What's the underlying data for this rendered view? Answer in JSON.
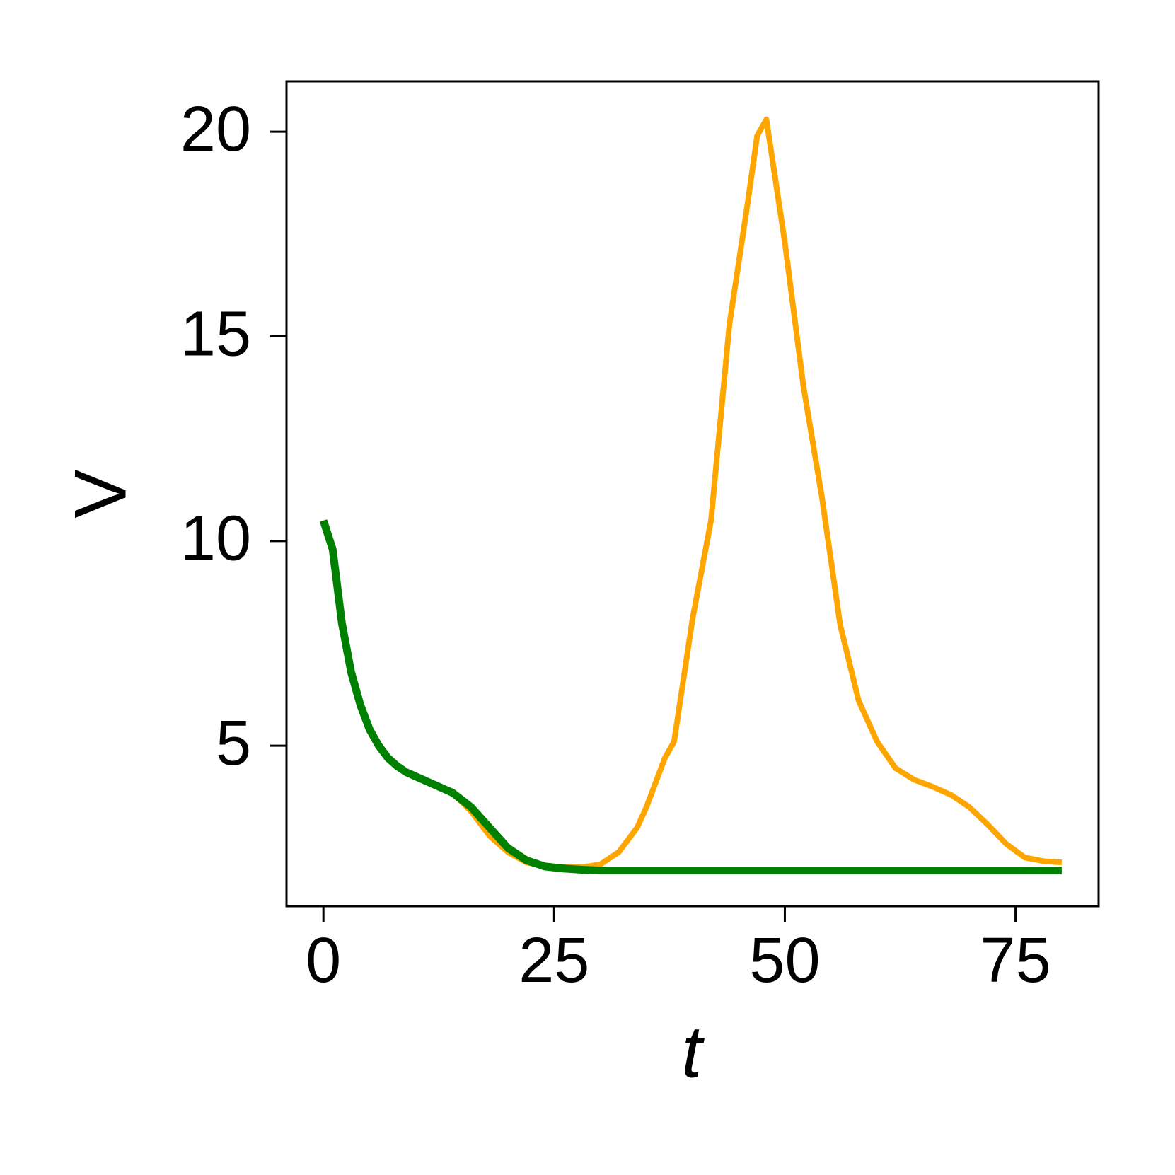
{
  "chart_data": {
    "type": "line",
    "xlabel": "t",
    "ylabel": "V",
    "x": [
      0,
      1,
      2,
      3,
      4,
      5,
      6,
      7,
      8,
      9,
      10,
      12,
      14,
      16,
      18,
      20,
      22,
      24,
      26,
      28,
      30,
      32,
      34,
      35,
      36,
      37,
      38,
      40,
      42,
      44,
      46,
      47,
      48,
      49,
      50,
      52,
      54,
      56,
      58,
      60,
      62,
      64,
      66,
      68,
      70,
      72,
      74,
      76,
      78,
      80
    ],
    "series": [
      {
        "color": "#0000cc",
        "width": 2,
        "values": [
          10.5,
          9.8,
          8.0,
          6.8,
          6.0,
          5.35,
          4.95,
          4.65,
          4.45,
          4.3,
          4.2,
          4.0,
          3.8,
          3.45,
          2.95,
          2.45,
          2.15,
          2.02,
          1.98,
          1.96,
          1.95,
          1.95,
          1.94,
          1.94,
          1.94,
          1.94,
          1.94,
          1.93,
          1.93,
          1.93,
          1.93,
          1.93,
          1.93,
          1.93,
          1.93,
          1.93,
          1.93,
          1.93,
          1.93,
          1.93,
          1.93,
          1.93,
          1.93,
          1.93,
          1.93,
          1.93,
          1.93,
          1.93,
          1.93,
          1.93
        ]
      },
      {
        "color": "#ffa500",
        "width": 8,
        "values": [
          10.5,
          9.8,
          8.0,
          6.8,
          6.0,
          5.4,
          5.0,
          4.7,
          4.5,
          4.35,
          4.25,
          4.05,
          3.85,
          3.4,
          2.8,
          2.4,
          2.15,
          2.05,
          2.03,
          2.03,
          2.1,
          2.4,
          3.0,
          3.5,
          4.1,
          4.7,
          5.1,
          8.1,
          10.5,
          15.3,
          18.3,
          19.9,
          20.3,
          18.8,
          17.3,
          13.8,
          11.1,
          7.95,
          6.1,
          5.1,
          4.45,
          4.17,
          4.0,
          3.8,
          3.5,
          3.07,
          2.6,
          2.27,
          2.18,
          2.15
        ]
      },
      {
        "color": "#008000",
        "width": 11,
        "values": [
          10.5,
          9.8,
          8.0,
          6.8,
          6.0,
          5.4,
          5.0,
          4.7,
          4.5,
          4.35,
          4.25,
          4.05,
          3.85,
          3.5,
          3.0,
          2.5,
          2.2,
          2.05,
          2.0,
          1.97,
          1.95,
          1.95,
          1.95,
          1.95,
          1.95,
          1.95,
          1.95,
          1.95,
          1.95,
          1.95,
          1.95,
          1.95,
          1.95,
          1.95,
          1.95,
          1.95,
          1.95,
          1.95,
          1.95,
          1.95,
          1.95,
          1.95,
          1.95,
          1.95,
          1.95,
          1.95,
          1.95,
          1.95,
          1.95,
          1.95
        ]
      }
    ],
    "xlim": [
      -4,
      84
    ],
    "ylim": [
      1.08,
      21.23
    ],
    "xticks": [
      0,
      25,
      50,
      75
    ],
    "yticks": [
      5,
      10,
      15,
      20
    ]
  }
}
